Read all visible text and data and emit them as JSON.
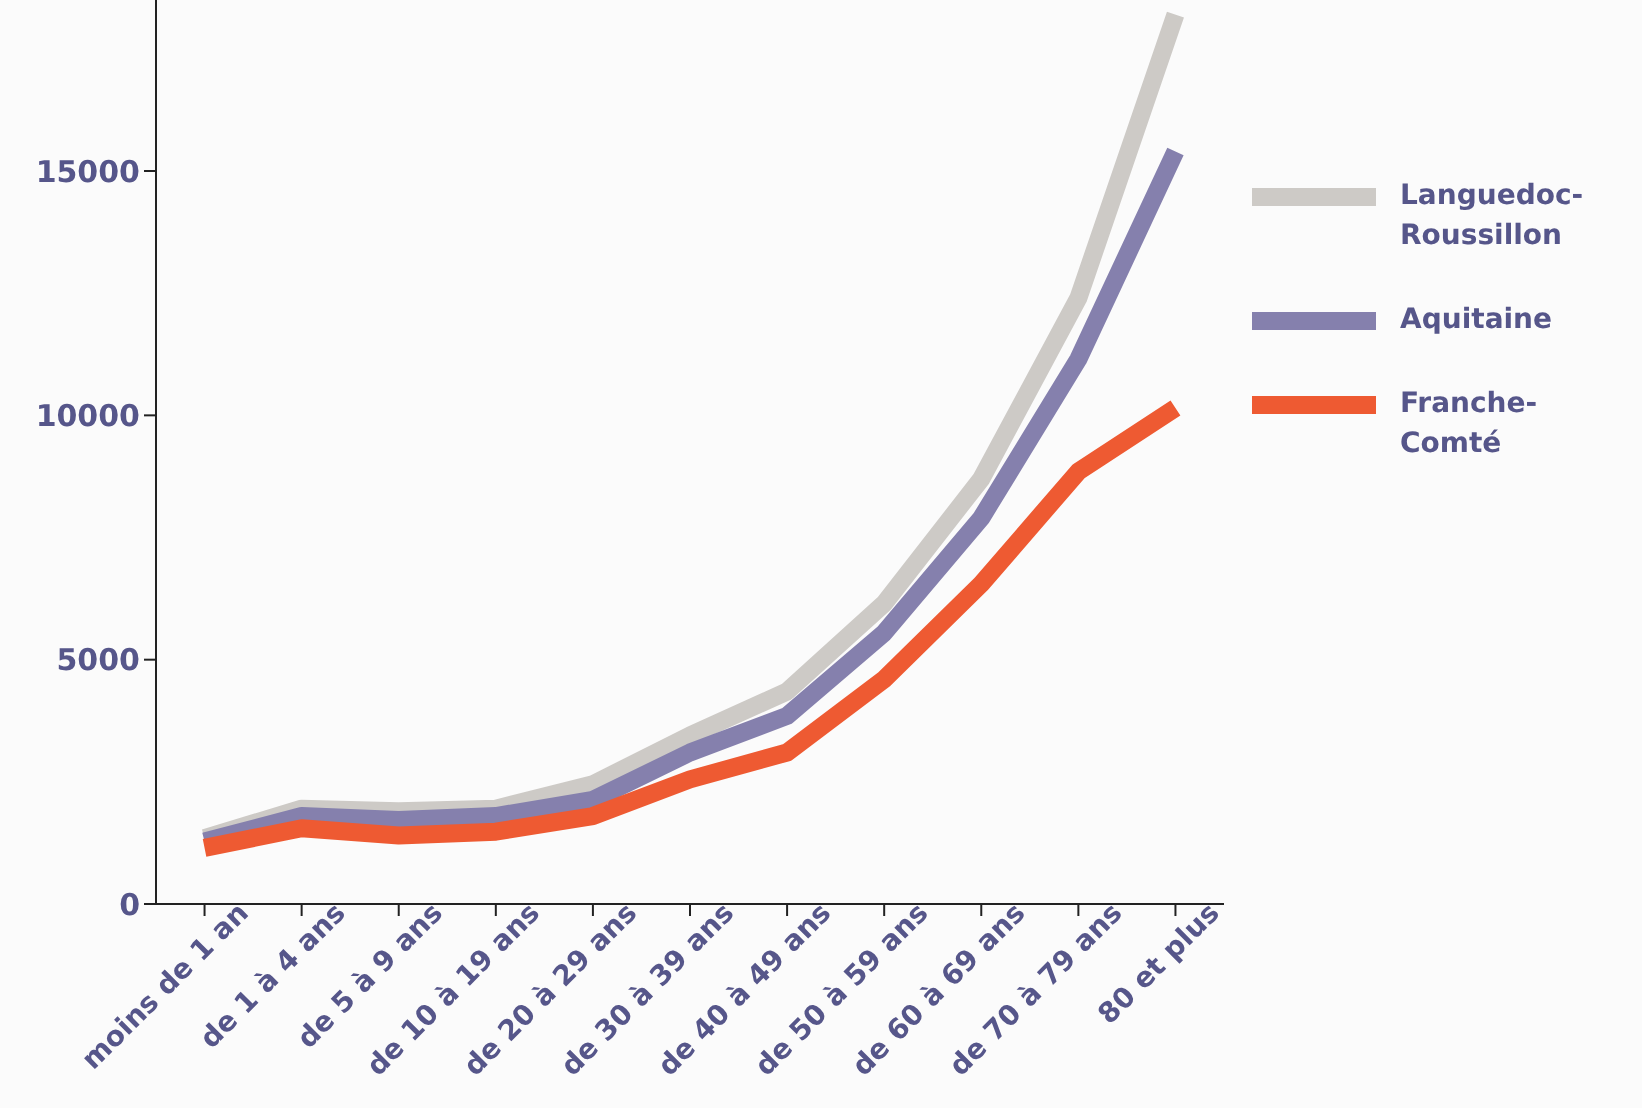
{
  "chart_data": {
    "type": "line",
    "categories": [
      "moins de 1 an",
      "de 1 à 4 ans",
      "de 5 à 9 ans",
      "de 10 à 19 ans",
      "de 20 à 29 ans",
      "de 30 à 39 ans",
      "de 40 à 49 ans",
      "de 50 à 59 ans",
      "de 60 à 69 ans",
      "de 70 à 79 ans",
      "80 et plus"
    ],
    "series": [
      {
        "name": "Languedoc-Roussillon",
        "color": "#cdcac6",
        "values": [
          1350,
          1950,
          1900,
          1950,
          2450,
          3450,
          4350,
          6150,
          8700,
          12400,
          18200
        ]
      },
      {
        "name": "Aquitaine",
        "color": "#8580ad",
        "values": [
          1280,
          1800,
          1720,
          1800,
          2130,
          3100,
          3850,
          5550,
          7900,
          11150,
          15400
        ]
      },
      {
        "name": "Franche-Comté",
        "color": "#ee5a32",
        "values": [
          1150,
          1550,
          1400,
          1480,
          1800,
          2550,
          3100,
          4600,
          6550,
          8850,
          10150
        ]
      }
    ],
    "ylim": [
      0,
      18500
    ],
    "yticks": [
      0,
      5000,
      10000,
      15000
    ],
    "grid": false,
    "legend": "top right",
    "marker": "none",
    "line_style": "solid"
  }
}
